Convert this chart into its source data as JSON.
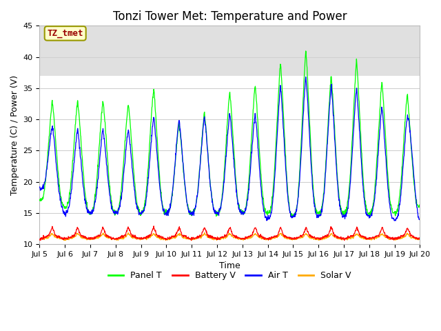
{
  "title": "Tonzi Tower Met: Temperature and Power",
  "xlabel": "Time",
  "ylabel": "Temperature (C) / Power (V)",
  "ylim": [
    10,
    45
  ],
  "annotation_text": "TZ_tmet",
  "legend_labels": [
    "Panel T",
    "Battery V",
    "Air T",
    "Solar V"
  ],
  "legend_colors": [
    "#00ff00",
    "#ff0000",
    "#0000ff",
    "#ffaa00"
  ],
  "line_colors": {
    "panel": "#00ff00",
    "battery": "#ff0000",
    "air": "#0000ff",
    "solar": "#ffaa00"
  },
  "x_tick_labels": [
    "Jul 5",
    "Jul 6",
    "Jul 7",
    "Jul 8",
    "Jul 9",
    "Jul 10",
    "Jul 11",
    "Jul 12",
    "Jul 13",
    "Jul 14",
    "Jul 15",
    "Jul 16",
    "Jul 17",
    "Jul 18",
    "Jul 19",
    "Jul 20"
  ],
  "yticks": [
    10,
    15,
    20,
    25,
    30,
    35,
    40,
    45
  ],
  "shaded_band": [
    37,
    45
  ],
  "shaded_color": "#e0e0e0",
  "plot_bg_color": "#ffffff",
  "grid_color": "#d0d0d0",
  "title_fontsize": 12,
  "axis_fontsize": 9,
  "tick_fontsize": 8,
  "annotation_color": "#990000",
  "annotation_bg": "#ffffcc",
  "annotation_edge": "#999900"
}
